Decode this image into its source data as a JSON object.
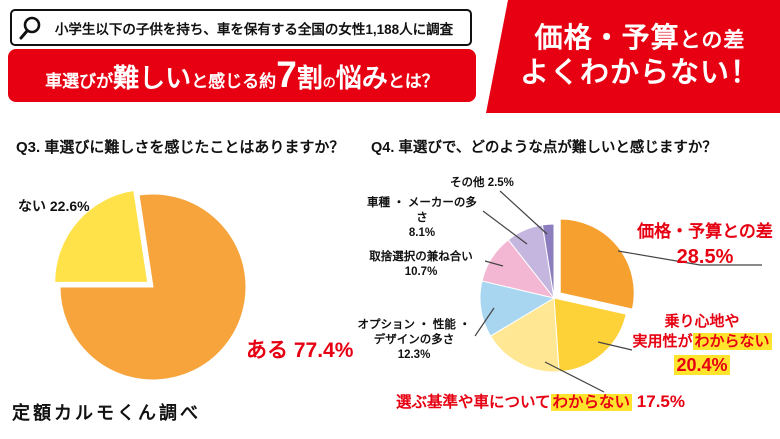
{
  "colors": {
    "brand_red": "#e60012",
    "highlight_yellow": "#ffe42e"
  },
  "header": {
    "survey_note": "小学生以下の子供を持ち、車を保有する全国の女性1,188人に調査",
    "title_segments": [
      {
        "text": "車選びが"
      },
      {
        "text": "難しい"
      },
      {
        "text": "と感じる約"
      },
      {
        "text": "7"
      },
      {
        "text": "割"
      },
      {
        "text": "の"
      },
      {
        "text": "悩み"
      },
      {
        "text": "とは？"
      }
    ],
    "headline": {
      "line1_big": "価格・予算",
      "line1_small": "との差",
      "line2": "よくわからない！"
    }
  },
  "q3": {
    "question": "Q3. 車選びに難しさを感じたことはありますか？",
    "labels": {
      "nai": "ない 22.6%",
      "aru": "ある 77.4%"
    },
    "source": "定額カルモくん調べ"
  },
  "q4": {
    "question": "Q4. 車選びで、どのような点が難しいと感じますか？",
    "labels": {
      "other": "その他 2.5%",
      "maker1": "車種 ・ メーカーの多さ",
      "maker2": "8.1%",
      "tradeoff1": "取捨選択の兼ね合い",
      "tradeoff2": "10.7%",
      "option1": "オプション ・ 性能 ・",
      "option2": "デザインの多さ",
      "option3": "12.3%",
      "price1": "価格・予算との差",
      "price2": "28.5%",
      "ride1": "乗り心地や",
      "ride2a": "実用性が",
      "ride2b": "わからない",
      "ride3": "20.4%",
      "crit1": "選ぶ基準や車について",
      "crit2": "わからない",
      "crit3": " 17.5%"
    }
  },
  "chart_data": [
    {
      "type": "pie",
      "title": "Q3. 車選びに難しさを感じたことはありますか？",
      "start_deg": -8.6,
      "legend_position": "none",
      "slices": [
        {
          "key": "aru",
          "label": "ある",
          "value": 77.4,
          "color": "#f7a43c",
          "explode": 0
        },
        {
          "key": "nai",
          "label": "ない",
          "value": 22.6,
          "color": "#ffe24a",
          "explode": 7
        }
      ]
    },
    {
      "type": "pie",
      "title": "Q4. 車選びで、どのような点が難しいと感じますか？",
      "start_deg": 0,
      "legend_position": "none",
      "slices": [
        {
          "key": "price",
          "label": "価格・予算との差",
          "value": 28.5,
          "color": "#f5a02f",
          "explode": 8
        },
        {
          "key": "ride",
          "label": "乗り心地や実用性がわからない",
          "value": 20.4,
          "color": "#fdd238",
          "explode": 0
        },
        {
          "key": "criteria",
          "label": "選ぶ基準や車についてわからない",
          "value": 17.5,
          "color": "#ffe793",
          "explode": 0
        },
        {
          "key": "option",
          "label": "オプション・性能・デザインの多さ",
          "value": 12.3,
          "color": "#a8d6f0",
          "explode": 0
        },
        {
          "key": "tradeoff",
          "label": "取捨選択の兼ね合い",
          "value": 10.7,
          "color": "#f4b7d3",
          "explode": 0
        },
        {
          "key": "maker",
          "label": "車種・メーカーの多さ",
          "value": 8.1,
          "color": "#c5b6e0",
          "explode": 0
        },
        {
          "key": "other",
          "label": "その他",
          "value": 2.5,
          "color": "#8b7dbe",
          "explode": 0
        }
      ]
    }
  ]
}
